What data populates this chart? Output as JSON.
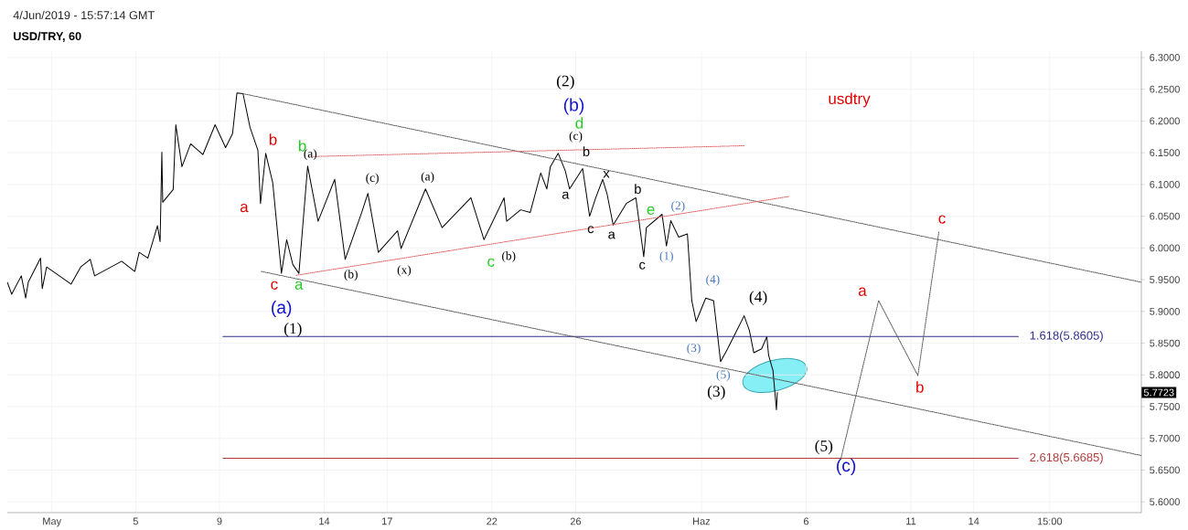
{
  "chart_data": {
    "type": "line",
    "title": "USD/TRY, 60",
    "subtitle": "4/Jun/2019 - 15:57:14 GMT",
    "xlim": [
      "2019-04-28T21:00",
      "2019-06-22"
    ],
    "xticks": [
      {
        "value": "2019-05-01",
        "label": "May"
      },
      {
        "value": "2019-05-05",
        "label": "5"
      },
      {
        "value": "2019-05-09",
        "label": "9"
      },
      {
        "value": "2019-05-14",
        "label": "14"
      },
      {
        "value": "2019-05-17",
        "label": "17"
      },
      {
        "value": "2019-05-22",
        "label": "22"
      },
      {
        "value": "2019-05-26",
        "label": "26"
      },
      {
        "value": "2019-06-01",
        "label": "Haz"
      },
      {
        "value": "2019-06-06",
        "label": "6"
      },
      {
        "value": "2019-06-11",
        "label": "11"
      },
      {
        "value": "2019-06-14",
        "label": "14"
      },
      {
        "value": "2019-06-17T15:00",
        "label": "15:00"
      }
    ],
    "ylim": [
      5.583,
      6.31
    ],
    "yticks": [
      {
        "value": 5.6,
        "label": "5.6000"
      },
      {
        "value": 5.65,
        "label": "5.6500"
      },
      {
        "value": 5.7,
        "label": "5.7000"
      },
      {
        "value": 5.75,
        "label": "5.7500"
      },
      {
        "value": 5.8,
        "label": "5.8000"
      },
      {
        "value": 5.85,
        "label": "5.8500"
      },
      {
        "value": 5.9,
        "label": "5.9000"
      },
      {
        "value": 5.95,
        "label": "5.9500"
      },
      {
        "value": 6.0,
        "label": "6.0000"
      },
      {
        "value": 6.05,
        "label": "6.0500"
      },
      {
        "value": 6.1,
        "label": "6.1000"
      },
      {
        "value": 6.15,
        "label": "6.1500"
      },
      {
        "value": 6.2,
        "label": "6.2000"
      },
      {
        "value": 6.25,
        "label": "6.2500"
      },
      {
        "value": 6.3,
        "label": "6.3000"
      }
    ],
    "grid": true,
    "series": [
      {
        "color": "#000000",
        "x": [
          "2019-04-28T21:00",
          "2019-04-29T02:00",
          "2019-04-29T13:00",
          "2019-04-29T18:00",
          "2019-04-29T21:00",
          "2019-04-30T11:00",
          "2019-04-30T13:00",
          "2019-04-30T18:00",
          "2019-05-01T22:00",
          "2019-05-02T09:00",
          "2019-05-02T20:00",
          "2019-05-03T01:00",
          "2019-05-04T08:00",
          "2019-05-04T23:00",
          "2019-05-05T04:00",
          "2019-05-05T14:00",
          "2019-05-06T01:00",
          "2019-05-06T04:00",
          "2019-05-06T06:00",
          "2019-05-06T07:00",
          "2019-05-06T19:00",
          "2019-05-06T22:00",
          "2019-05-07T05:00",
          "2019-05-07T15:00",
          "2019-05-08T05:00",
          "2019-05-08T19:00",
          "2019-05-09T07:00",
          "2019-05-09T15:00",
          "2019-05-09T20:00",
          "2019-05-10T03:00",
          "2019-05-10T11:00",
          "2019-05-10T20:00",
          "2019-05-10T23:00",
          "2019-05-11T05:00",
          "2019-05-11T13:00",
          "2019-05-11T23:00",
          "2019-05-12T05:00",
          "2019-05-12T12:00",
          "2019-05-12T19:00",
          "2019-05-13T05:00",
          "2019-05-13T17:00",
          "2019-05-14T12:00",
          "2019-05-15T00:00",
          "2019-05-15T19:00",
          "2019-05-16T02:00",
          "2019-05-16T14:00",
          "2019-05-17T12:00",
          "2019-05-17T16:00",
          "2019-05-18T20:00",
          "2019-05-19T15:00",
          "2019-05-21T00:00",
          "2019-05-21T15:00",
          "2019-05-22T14:00",
          "2019-05-22T17:00",
          "2019-05-23T09:00",
          "2019-05-23T20:00",
          "2019-05-24T08:00",
          "2019-05-24T15:00",
          "2019-05-24T19:00",
          "2019-05-25T04:00",
          "2019-05-25T12:00",
          "2019-05-25T17:00",
          "2019-05-26T08:00",
          "2019-05-26T16:00",
          "2019-05-26T23:00",
          "2019-05-27T07:00",
          "2019-05-27T12:00",
          "2019-05-27T19:00",
          "2019-05-28T10:00",
          "2019-05-28T21:00",
          "2019-05-29T06:00",
          "2019-05-29T09:00",
          "2019-05-30T03:00",
          "2019-05-30T08:00",
          "2019-05-30T13:00",
          "2019-05-30T22:00",
          "2019-05-31T08:00",
          "2019-05-31T13:00",
          "2019-05-31T18:00",
          "2019-06-01T05:00",
          "2019-06-01T14:00",
          "2019-06-01T22:00",
          "2019-06-02T06:00",
          "2019-06-02T13:00",
          "2019-06-03T01:00",
          "2019-06-03T07:00",
          "2019-06-03T12:00",
          "2019-06-03T21:00",
          "2019-06-04T03:00",
          "2019-06-04T05:00",
          "2019-06-04T10:00",
          "2019-06-04T14:00",
          "2019-06-04T15:00"
        ],
        "values": [
          5.946,
          5.927,
          5.956,
          5.921,
          5.946,
          5.984,
          5.936,
          5.97,
          5.943,
          5.97,
          5.982,
          5.956,
          5.979,
          5.963,
          5.993,
          5.984,
          6.035,
          6.01,
          6.151,
          6.072,
          6.092,
          6.194,
          6.128,
          6.164,
          6.147,
          6.194,
          6.158,
          6.18,
          6.244,
          6.243,
          6.19,
          6.154,
          6.07,
          6.149,
          6.103,
          5.96,
          6.013,
          5.974,
          5.96,
          6.129,
          6.042,
          6.108,
          5.982,
          6.056,
          6.086,
          5.993,
          6.027,
          5.999,
          6.093,
          6.032,
          6.079,
          6.013,
          6.079,
          6.042,
          6.06,
          6.056,
          6.118,
          6.093,
          6.128,
          6.149,
          6.122,
          6.093,
          6.125,
          6.05,
          6.079,
          6.108,
          6.085,
          6.036,
          6.07,
          6.079,
          5.986,
          6.032,
          6.053,
          6.003,
          6.043,
          6.017,
          6.022,
          5.917,
          5.884,
          5.921,
          5.917,
          5.821,
          5.841,
          5.86,
          5.893,
          5.87,
          5.835,
          5.841,
          5.86,
          5.831,
          5.807,
          5.745,
          5.7723
        ]
      },
      {
        "name": "1.618(5.8605)",
        "color": "#2e2e8a",
        "x": [
          "2019-05-09T04:00",
          "2019-06-16T03:00"
        ],
        "values": [
          5.8605,
          5.8605
        ]
      },
      {
        "name": "2.618(5.6685)",
        "color": "#b03a3a",
        "x": [
          "2019-05-09T04:00",
          "2019-06-16T03:00"
        ],
        "values": [
          5.6685,
          5.6685
        ]
      },
      {
        "color": "#555555",
        "line_style": "dotted",
        "x": [
          "2019-05-10T03:00",
          "2019-06-22"
        ],
        "values": [
          6.243,
          5.946
        ]
      },
      {
        "color": "#555555",
        "line_style": "dotted",
        "x": [
          "2019-05-11T00:00",
          "2019-06-22"
        ],
        "values": [
          5.963,
          5.673
        ]
      },
      {
        "color": "#e06060",
        "line_style": "dotted",
        "x": [
          "2019-05-13T11:00",
          "2019-06-03T01:00"
        ],
        "values": [
          6.144,
          6.161
        ]
      },
      {
        "color": "#e06060",
        "line_style": "dotted",
        "x": [
          "2019-05-12T16:00",
          "2019-06-05T04:00"
        ],
        "values": [
          5.957,
          6.081
        ]
      },
      {
        "color": "#555555",
        "line_style": "dotted",
        "x": [
          "2019-06-07T16:00",
          "2019-06-09T11:00",
          "2019-06-11T08:00",
          "2019-06-12T08:00"
        ],
        "values": [
          5.669,
          5.917,
          5.799,
          6.025
        ]
      }
    ],
    "annotations": [
      "usdtry",
      "5.7723",
      "b",
      "a",
      "c",
      "a",
      "b",
      "c",
      "b",
      "a",
      "c",
      "d",
      "e",
      "(a)",
      "(b)",
      "(c)",
      "(1)",
      "(2)",
      "(3)",
      "(4)",
      "(5)",
      "(a)",
      "(c)",
      "(a)",
      "(b)",
      "(x)",
      "(b)",
      "(c)",
      "b",
      "x",
      "a",
      "c",
      "a",
      "b",
      "c",
      "(2)",
      "(1)",
      "(4)",
      "(3)",
      "(5)"
    ]
  }
}
